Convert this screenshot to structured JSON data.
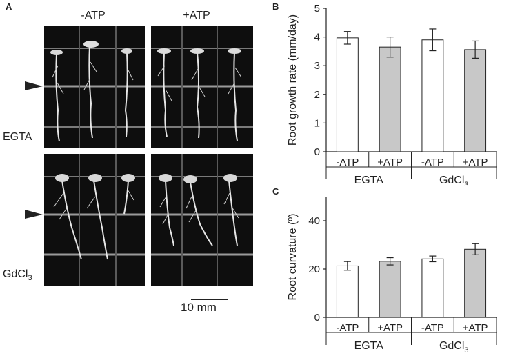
{
  "panel_a": {
    "letter": "A",
    "col_headers": [
      "-ATP",
      "+ATP"
    ],
    "row_labels": [
      "EGTA",
      "GdCl"
    ],
    "row_label_subscript": "3",
    "scale_bar_label": "10 mm"
  },
  "chart_data": [
    {
      "letter": "B",
      "type": "bar",
      "categories": [
        "-ATP",
        "+ATP",
        "-ATP",
        "+ATP"
      ],
      "groups": [
        "EGTA",
        "GdCl3"
      ],
      "group_labels": [
        "EGTA",
        "GdCl"
      ],
      "group_subscript": "3",
      "values": [
        3.97,
        3.65,
        3.9,
        3.56
      ],
      "errors": [
        0.22,
        0.35,
        0.38,
        0.3
      ],
      "bar_colors": [
        "#ffffff",
        "#c8c8c8",
        "#ffffff",
        "#c8c8c8"
      ],
      "ylabel": "Root growth rate (mm/day)",
      "ylim": [
        0,
        5
      ],
      "yticks": [
        0,
        1,
        2,
        3,
        4,
        5
      ]
    },
    {
      "letter": "C",
      "type": "bar",
      "categories": [
        "-ATP",
        "+ATP",
        "-ATP",
        "+ATP"
      ],
      "groups": [
        "EGTA",
        "GdCl3"
      ],
      "group_labels": [
        "EGTA",
        "GdCl"
      ],
      "group_subscript": "3",
      "values": [
        21.3,
        23.2,
        24.2,
        28.2
      ],
      "errors": [
        1.8,
        1.5,
        1.2,
        2.3
      ],
      "bar_colors": [
        "#ffffff",
        "#c8c8c8",
        "#ffffff",
        "#c8c8c8"
      ],
      "ylabel": "Root curvature (º)",
      "ylim": [
        0,
        50
      ],
      "yticks": [
        0,
        20,
        40
      ]
    }
  ]
}
